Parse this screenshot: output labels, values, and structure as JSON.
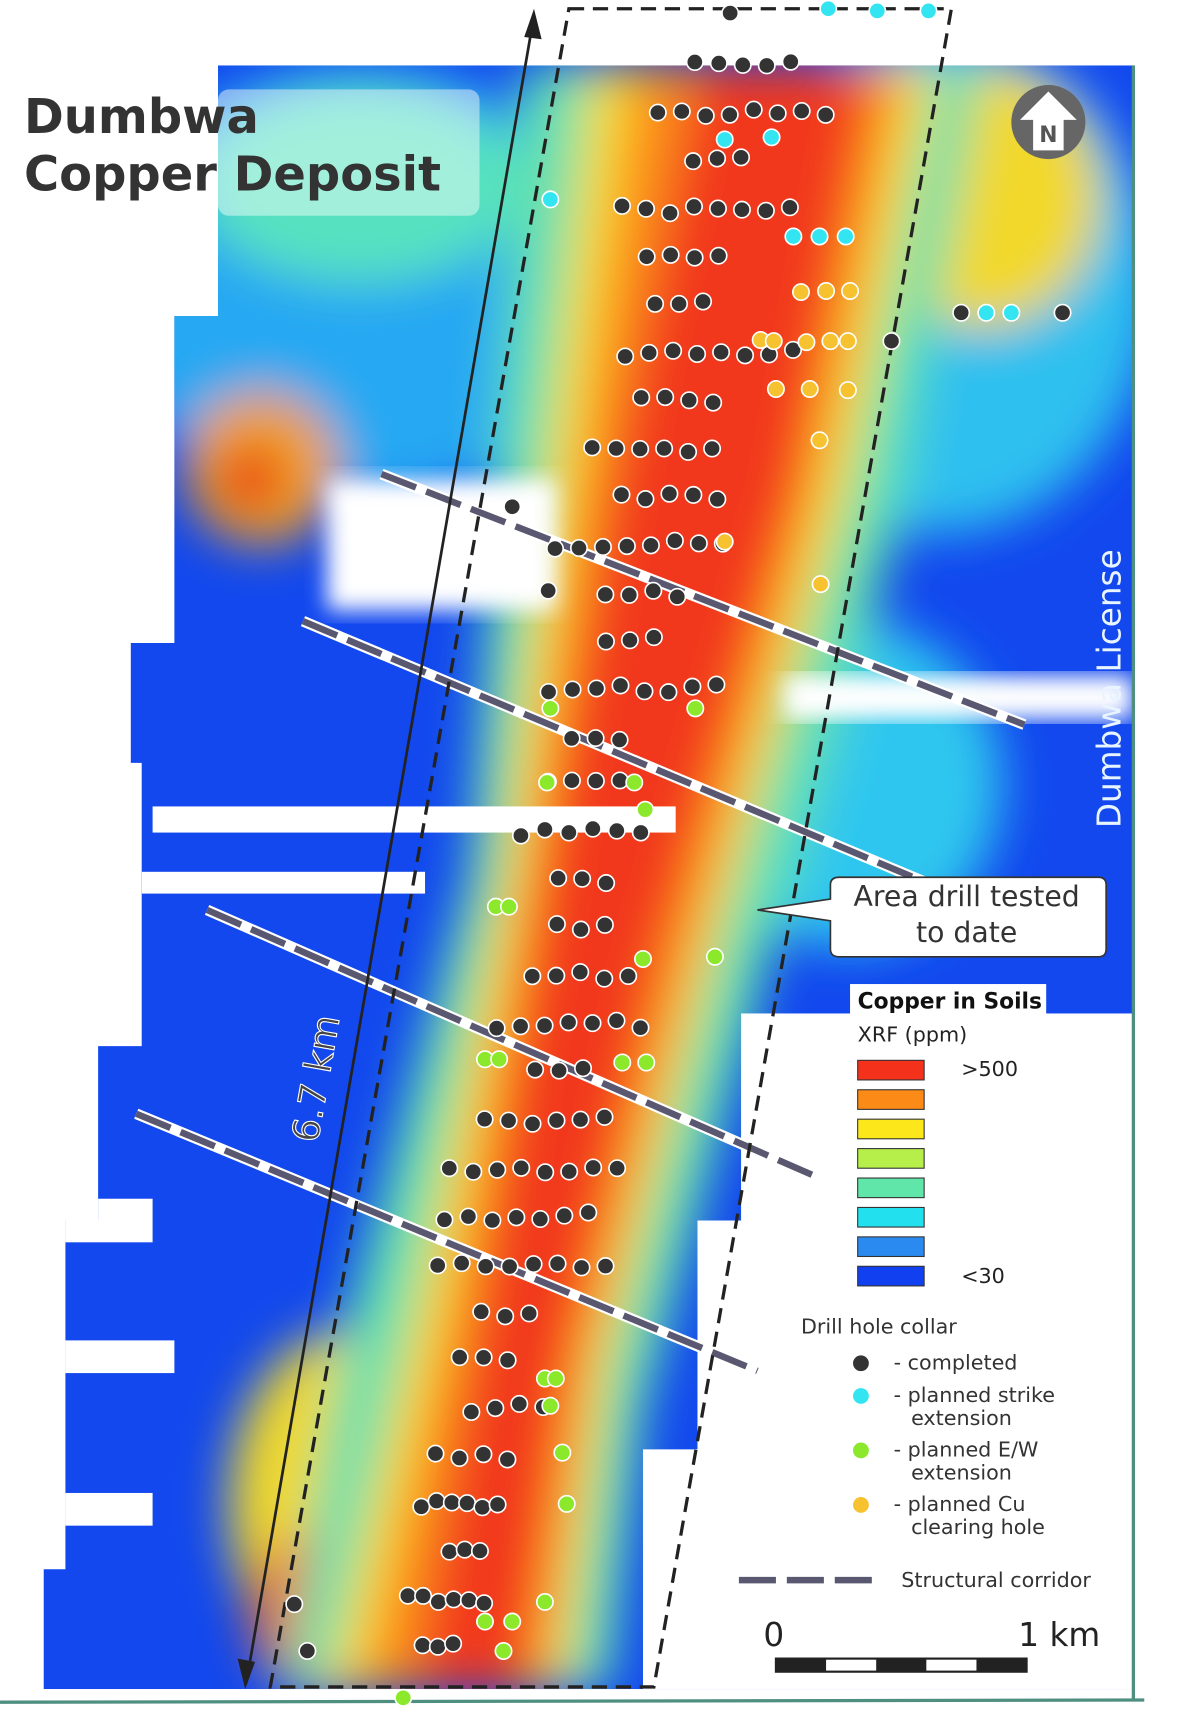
{
  "title": {
    "line1": "Dumbwa",
    "line2": "Copper Deposit"
  },
  "north_label": "N",
  "license_label": "Dumbwa License",
  "length_label": "6.7 km",
  "callout": {
    "line1": "Area drill tested",
    "line2": "to date"
  },
  "legend": {
    "title": "Copper in Soils",
    "subtitle": "XRF (ppm)",
    "ramp_colors": [
      "#f4321c",
      "#fb8a16",
      "#fce81a",
      "#b6ef4a",
      "#5fe6a8",
      "#22e0ee",
      "#2a8af0",
      "#1040f0"
    ],
    "ramp_high": ">500",
    "ramp_low": "<30",
    "collar_title": "Drill hole collar",
    "collars": [
      {
        "color": "#333333",
        "lines": [
          "- completed"
        ]
      },
      {
        "color": "#33e5f0",
        "lines": [
          "- planned strike",
          "extension"
        ]
      },
      {
        "color": "#8be82a",
        "lines": [
          "- planned E/W",
          "extension"
        ]
      },
      {
        "color": "#f7c230",
        "lines": [
          "- planned Cu",
          "clearing hole"
        ]
      }
    ],
    "corridor_label": "Structural corridor"
  },
  "scale": {
    "start": "0",
    "end": "1 km"
  }
}
